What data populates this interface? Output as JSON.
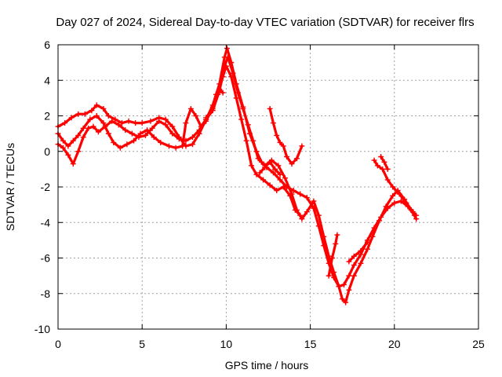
{
  "chart_data": {
    "type": "scatter",
    "title": "Day 027 of 2024, Sidereal Day-to-day VTEC variation (SDTVAR) for receiver flrs",
    "xlabel": "GPS time / hours",
    "ylabel": "SDTVAR / TECUs",
    "xlim": [
      0,
      25
    ],
    "ylim": [
      -10,
      6
    ],
    "xticks": [
      0,
      5,
      10,
      15,
      20,
      25
    ],
    "yticks": [
      -10,
      -8,
      -6,
      -4,
      -2,
      0,
      2,
      4,
      6
    ],
    "grid": true,
    "marker": "plus",
    "series": [
      {
        "color": "#ff0000",
        "segments": [
          [
            [
              0.0,
              1.4
            ],
            [
              0.4,
              1.6
            ],
            [
              0.8,
              1.9
            ],
            [
              1.2,
              2.1
            ],
            [
              1.6,
              2.1
            ],
            [
              2.0,
              2.3
            ],
            [
              2.3,
              2.6
            ],
            [
              2.7,
              2.4
            ],
            [
              3.0,
              2.0
            ],
            [
              3.4,
              1.8
            ],
            [
              3.8,
              1.6
            ],
            [
              4.2,
              1.7
            ],
            [
              4.6,
              1.6
            ],
            [
              5.0,
              1.6
            ],
            [
              5.5,
              1.7
            ],
            [
              6.0,
              1.9
            ],
            [
              6.4,
              1.8
            ],
            [
              6.8,
              1.4
            ],
            [
              7.2,
              0.8
            ],
            [
              7.6,
              0.3
            ],
            [
              8.0,
              0.4
            ],
            [
              8.4,
              1.0
            ],
            [
              8.8,
              1.8
            ],
            [
              9.2,
              2.6
            ],
            [
              9.6,
              3.8
            ],
            [
              9.9,
              5.3
            ],
            [
              10.05,
              5.8
            ],
            [
              10.3,
              5.0
            ],
            [
              10.6,
              3.8
            ],
            [
              11.0,
              2.5
            ],
            [
              11.4,
              1.0
            ],
            [
              11.8,
              0.0
            ],
            [
              12.1,
              -0.6
            ],
            [
              12.4,
              -0.9
            ],
            [
              12.8,
              -1.2
            ],
            [
              13.2,
              -1.6
            ],
            [
              13.6,
              -2.0
            ],
            [
              14.0,
              -2.2
            ],
            [
              14.4,
              -2.4
            ],
            [
              14.8,
              -2.6
            ],
            [
              15.2,
              -3.2
            ],
            [
              15.5,
              -4.2
            ],
            [
              15.8,
              -5.3
            ],
            [
              16.1,
              -6.3
            ],
            [
              16.4,
              -7.1
            ],
            [
              16.7,
              -7.6
            ],
            [
              17.0,
              -7.5
            ],
            [
              17.3,
              -7.0
            ],
            [
              17.6,
              -6.4
            ],
            [
              18.0,
              -5.8
            ],
            [
              18.4,
              -5.0
            ],
            [
              18.8,
              -4.3
            ],
            [
              19.2,
              -3.7
            ],
            [
              19.6,
              -3.2
            ],
            [
              20.0,
              -2.9
            ],
            [
              20.4,
              -2.8
            ],
            [
              20.8,
              -3.1
            ],
            [
              21.2,
              -3.6
            ]
          ],
          [
            [
              0.0,
              1.0
            ],
            [
              0.3,
              0.6
            ],
            [
              0.6,
              0.3
            ],
            [
              0.9,
              0.6
            ],
            [
              1.2,
              0.9
            ],
            [
              1.5,
              1.3
            ],
            [
              1.9,
              1.8
            ],
            [
              2.3,
              2.0
            ],
            [
              2.7,
              1.6
            ],
            [
              3.0,
              1.0
            ],
            [
              3.3,
              0.5
            ],
            [
              3.7,
              0.2
            ],
            [
              4.1,
              0.4
            ],
            [
              4.5,
              0.6
            ],
            [
              4.9,
              1.0
            ],
            [
              5.3,
              1.2
            ],
            [
              5.7,
              0.8
            ],
            [
              6.1,
              0.5
            ],
            [
              6.6,
              0.3
            ],
            [
              7.0,
              0.2
            ],
            [
              7.4,
              0.3
            ],
            [
              7.6,
              1.6
            ],
            [
              7.9,
              2.4
            ],
            [
              8.2,
              2.0
            ],
            [
              8.5,
              1.4
            ],
            [
              8.8,
              1.8
            ],
            [
              9.2,
              2.3
            ],
            [
              9.6,
              3.4
            ],
            [
              9.9,
              4.8
            ],
            [
              10.1,
              5.3
            ],
            [
              10.4,
              4.4
            ],
            [
              10.7,
              3.3
            ],
            [
              11.0,
              2.4
            ],
            [
              11.3,
              1.5
            ],
            [
              11.6,
              0.6
            ],
            [
              11.9,
              -0.4
            ],
            [
              12.3,
              -0.8
            ],
            [
              12.7,
              -0.5
            ],
            [
              13.1,
              -0.8
            ],
            [
              13.5,
              -1.5
            ],
            [
              13.9,
              -2.4
            ],
            [
              14.2,
              -3.3
            ],
            [
              14.5,
              -3.8
            ],
            [
              14.8,
              -3.4
            ],
            [
              15.2,
              -2.8
            ],
            [
              15.5,
              -3.6
            ],
            [
              15.8,
              -4.8
            ],
            [
              16.1,
              -5.9
            ],
            [
              16.4,
              -6.8
            ],
            [
              16.7,
              -7.6
            ],
            [
              16.9,
              -8.3
            ],
            [
              17.1,
              -8.5
            ],
            [
              17.3,
              -7.8
            ],
            [
              17.6,
              -7.0
            ],
            [
              18.0,
              -6.3
            ],
            [
              18.4,
              -5.5
            ],
            [
              18.7,
              -4.8
            ],
            [
              19.1,
              -3.9
            ],
            [
              19.5,
              -3.1
            ],
            [
              19.9,
              -2.5
            ],
            [
              20.2,
              -2.2
            ],
            [
              20.6,
              -2.7
            ],
            [
              21.0,
              -3.3
            ],
            [
              21.3,
              -3.8
            ]
          ],
          [
            [
              0.0,
              0.4
            ],
            [
              0.3,
              0.2
            ],
            [
              0.6,
              -0.2
            ],
            [
              0.9,
              -0.7
            ],
            [
              1.2,
              0.0
            ],
            [
              1.5,
              0.8
            ],
            [
              1.8,
              1.3
            ],
            [
              2.1,
              1.4
            ],
            [
              2.4,
              1.1
            ],
            [
              2.8,
              1.4
            ],
            [
              3.2,
              1.7
            ],
            [
              3.6,
              1.5
            ],
            [
              4.0,
              1.2
            ],
            [
              4.4,
              1.0
            ],
            [
              4.8,
              0.8
            ],
            [
              5.2,
              0.9
            ],
            [
              5.6,
              1.3
            ],
            [
              6.0,
              1.7
            ],
            [
              6.4,
              1.5
            ],
            [
              6.8,
              1.0
            ],
            [
              7.2,
              0.7
            ],
            [
              7.6,
              0.6
            ],
            [
              8.0,
              0.8
            ],
            [
              8.4,
              1.2
            ],
            [
              8.8,
              1.7
            ],
            [
              9.2,
              2.5
            ],
            [
              9.5,
              3.2
            ],
            [
              9.8,
              4.2
            ],
            [
              10.0,
              4.8
            ],
            [
              10.3,
              4.2
            ],
            [
              10.6,
              3.0
            ],
            [
              10.9,
              1.8
            ],
            [
              11.2,
              0.6
            ],
            [
              11.5,
              -0.8
            ],
            [
              11.8,
              -1.3
            ],
            [
              12.2,
              -1.6
            ],
            [
              12.6,
              -1.9
            ],
            [
              13.0,
              -2.2
            ],
            [
              13.4,
              -2.0
            ],
            [
              13.8,
              -2.5
            ],
            [
              14.1,
              -3.3
            ],
            [
              14.4,
              -3.6
            ]
          ],
          [
            [
              8.8,
              1.9
            ],
            [
              9.2,
              2.4
            ],
            [
              9.4,
              3.2
            ],
            [
              9.6,
              3.5
            ],
            [
              9.8,
              3.3
            ]
          ],
          [
            [
              12.6,
              2.4
            ],
            [
              12.8,
              1.6
            ],
            [
              13.0,
              0.9
            ],
            [
              13.2,
              0.5
            ],
            [
              13.4,
              0.3
            ],
            [
              13.6,
              -0.3
            ],
            [
              13.9,
              -0.7
            ],
            [
              14.2,
              -0.4
            ],
            [
              14.5,
              0.3
            ]
          ],
          [
            [
              12.0,
              -1.2
            ],
            [
              12.3,
              -0.9
            ],
            [
              12.6,
              -0.6
            ],
            [
              12.9,
              -1.0
            ],
            [
              13.2,
              -1.3
            ]
          ],
          [
            [
              17.3,
              -6.2
            ],
            [
              17.6,
              -5.9
            ],
            [
              18.0,
              -5.6
            ],
            [
              18.4,
              -5.1
            ]
          ],
          [
            [
              16.1,
              -7.0
            ],
            [
              16.3,
              -6.0
            ],
            [
              16.5,
              -5.2
            ],
            [
              16.6,
              -4.7
            ]
          ],
          [
            [
              18.8,
              -0.5
            ],
            [
              19.0,
              -0.8
            ],
            [
              19.3,
              -1.0
            ],
            [
              19.6,
              -1.6
            ],
            [
              19.9,
              -2.0
            ],
            [
              20.3,
              -2.4
            ],
            [
              20.7,
              -2.9
            ],
            [
              21.1,
              -3.4
            ],
            [
              21.3,
              -3.6
            ]
          ],
          [
            [
              19.2,
              -0.3
            ],
            [
              19.4,
              -0.6
            ],
            [
              19.6,
              -1.0
            ]
          ]
        ]
      }
    ]
  }
}
